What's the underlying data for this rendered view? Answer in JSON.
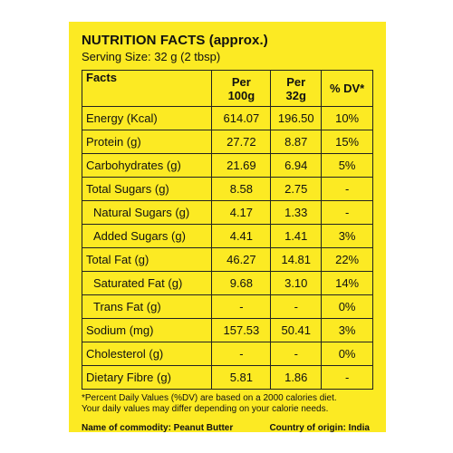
{
  "title": "NUTRITION FACTS (approx.)",
  "serving_size": "Serving Size: 32 g (2 tbsp)",
  "headers": {
    "facts": "Facts",
    "per100_line1": "Per",
    "per100_line2": "100g",
    "per32_line1": "Per",
    "per32_line2": "32g",
    "dv": "% DV*"
  },
  "rows": [
    {
      "name": "Energy (Kcal)",
      "per100": "614.07",
      "per32": "196.50",
      "dv": "10%"
    },
    {
      "name": "Protein (g)",
      "per100": "27.72",
      "per32": "8.87",
      "dv": "15%"
    },
    {
      "name": "Carbohydrates (g)",
      "per100": "21.69",
      "per32": "6.94",
      "dv": "5%"
    },
    {
      "name": "Total Sugars (g)",
      "per100": "8.58",
      "per32": "2.75",
      "dv": "-"
    },
    {
      "name": "Natural Sugars (g)",
      "per100": "4.17",
      "per32": "1.33",
      "dv": "-"
    },
    {
      "name": "Added Sugars (g)",
      "per100": "4.41",
      "per32": "1.41",
      "dv": "3%"
    },
    {
      "name": "Total Fat (g)",
      "per100": "46.27",
      "per32": "14.81",
      "dv": "22%"
    },
    {
      "name": "Saturated Fat (g)",
      "per100": "9.68",
      "per32": "3.10",
      "dv": "14%"
    },
    {
      "name": "Trans Fat (g)",
      "per100": "-",
      "per32": "-",
      "dv": "0%"
    },
    {
      "name": "Sodium (mg)",
      "per100": "157.53",
      "per32": "50.41",
      "dv": "3%"
    },
    {
      "name": "Cholesterol (g)",
      "per100": "-",
      "per32": "-",
      "dv": "0%"
    },
    {
      "name": "Dietary Fibre (g)",
      "per100": "5.81",
      "per32": "1.86",
      "dv": "-"
    }
  ],
  "footnote_line1": "*Percent Daily Values (%DV) are based on a 2000 calories diet.",
  "footnote_line2": "Your daily values may differ depending on your calorie needs.",
  "commodity": "Name of commodity: Peanut Butter",
  "origin": "Country of origin: India",
  "colors": {
    "background": "#fcea23",
    "text": "#111111"
  }
}
